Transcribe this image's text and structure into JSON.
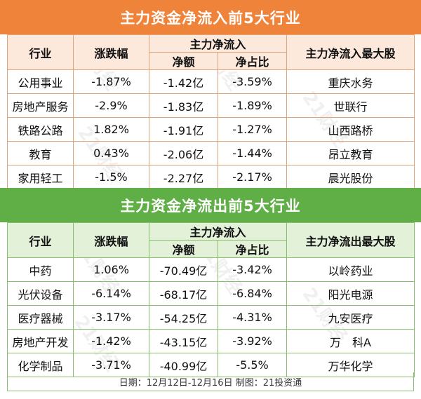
{
  "inflow": {
    "title": "主力资金净流入前5大行业",
    "headers": {
      "industry": "行业",
      "change": "涨跌幅",
      "net": "主力净流入",
      "amount": "净额",
      "ratio": "净占比",
      "top_stock": "主力净流入最大股"
    },
    "rows": [
      {
        "industry": "公用事业",
        "change": "-1.87%",
        "amount": "-1.42亿",
        "ratio": "-3.59%",
        "stock": "重庆水务"
      },
      {
        "industry": "房地产服务",
        "change": "-2.9%",
        "amount": "-1.83亿",
        "ratio": "-1.89%",
        "stock": "世联行"
      },
      {
        "industry": "铁路公路",
        "change": "1.82%",
        "amount": "-1.91亿",
        "ratio": "-1.27%",
        "stock": "山西路桥"
      },
      {
        "industry": "教育",
        "change": "0.43%",
        "amount": "-2.06亿",
        "ratio": "-1.44%",
        "stock": "昂立教育"
      },
      {
        "industry": "家用轻工",
        "change": "-1.5%",
        "amount": "-2.27亿",
        "ratio": "-2.17%",
        "stock": "晨光股份"
      }
    ]
  },
  "outflow": {
    "title": "主力资金净流出前5大行业",
    "headers": {
      "industry": "行业",
      "change": "涨跌幅",
      "net": "主力净流入",
      "amount": "净额",
      "ratio": "净占比",
      "top_stock": "主力净流出最大股"
    },
    "rows": [
      {
        "industry": "中药",
        "change": "1.06%",
        "amount": "-70.49亿",
        "ratio": "-3.42%",
        "stock": "以岭药业"
      },
      {
        "industry": "光伏设备",
        "change": "-6.14%",
        "amount": "-68.17亿",
        "ratio": "-6.84%",
        "stock": "阳光电源"
      },
      {
        "industry": "医疗器械",
        "change": "-3.17%",
        "amount": "-54.25亿",
        "ratio": "-4.31%",
        "stock": "九安医疗"
      },
      {
        "industry": "房地产开发",
        "change": "-1.42%",
        "amount": "-43.15亿",
        "ratio": "-3.92%",
        "stock": "万　科A"
      },
      {
        "industry": "化学制品",
        "change": "-3.71%",
        "amount": "-40.99亿",
        "ratio": "-5.5%",
        "stock": "万华化学"
      }
    ]
  },
  "footer": "日期：12月12日-12月16日 制图：21投资通",
  "watermark": "21财经",
  "colors": {
    "inflow_accent": "#f0833a",
    "outflow_accent": "#5fae46"
  }
}
